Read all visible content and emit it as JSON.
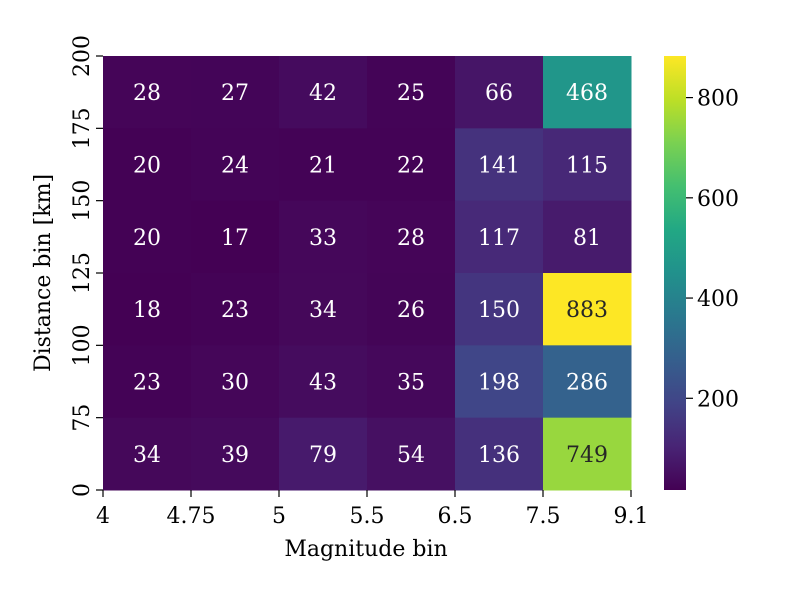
{
  "chart_data": {
    "type": "heatmap",
    "xlabel": "Magnitude bin",
    "ylabel": "Distance bin [km]",
    "x_ticks": [
      "4",
      "4.75",
      "5",
      "5.5",
      "6.5",
      "7.5",
      "9.1"
    ],
    "y_ticks": [
      "0",
      "75",
      "100",
      "125",
      "150",
      "175",
      "200"
    ],
    "rows_top_to_bottom": [
      [
        28,
        27,
        42,
        25,
        66,
        468
      ],
      [
        20,
        24,
        21,
        22,
        141,
        115
      ],
      [
        20,
        17,
        33,
        28,
        117,
        81
      ],
      [
        18,
        23,
        34,
        26,
        150,
        883
      ],
      [
        23,
        30,
        43,
        35,
        198,
        286
      ],
      [
        34,
        39,
        79,
        54,
        136,
        749
      ]
    ],
    "colormap": "viridis",
    "vmin": 17,
    "vmax": 883,
    "colorbar_ticks": [
      200,
      400,
      600,
      800
    ]
  }
}
